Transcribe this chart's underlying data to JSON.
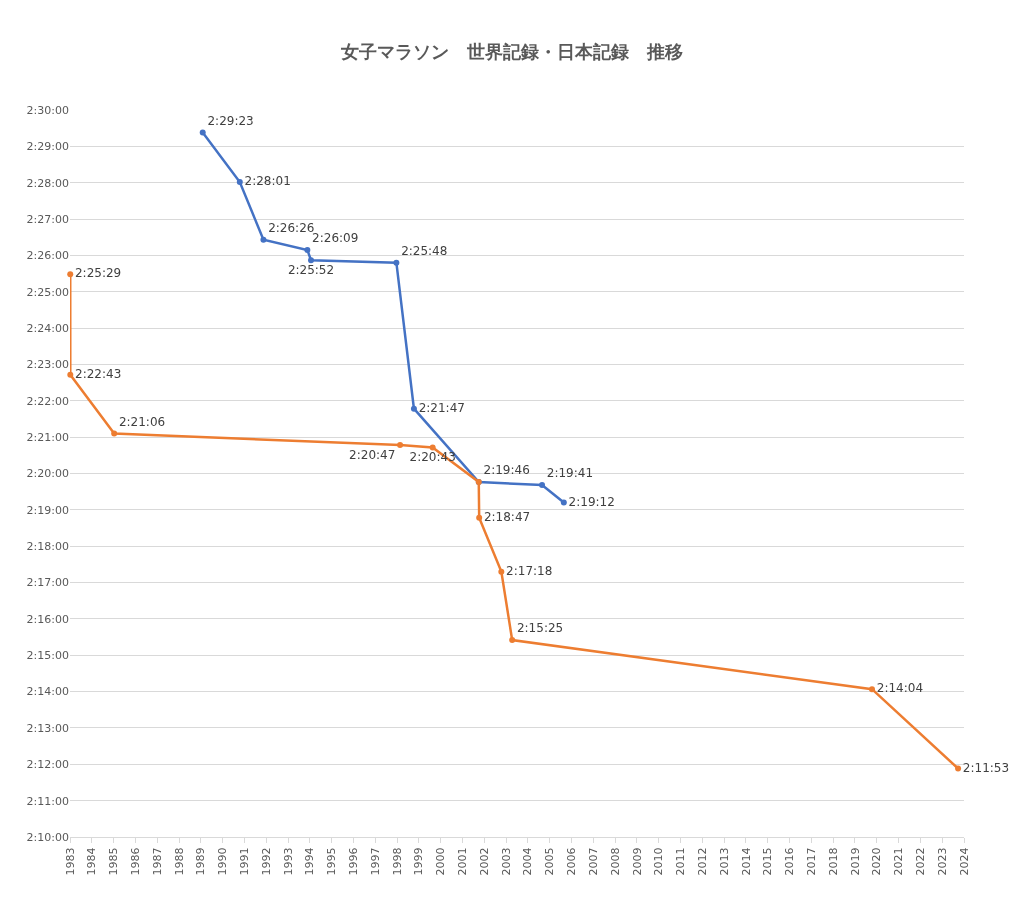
{
  "chart_data": {
    "type": "line",
    "title": "女子マラソン　世界記録・日本記録　推移",
    "series": [
      {
        "color": "#4472c4",
        "x": [
          "1989-02-01",
          "1990-10-15",
          "1991-11-15",
          "1993-11-20",
          "1994-01-20",
          "1997-12-20",
          "1998-10-10",
          "2001-09-30",
          "2004-08-25",
          "2005-08-25"
        ],
        "values": [
          8963,
          8881,
          8786,
          8769,
          8752,
          8748,
          8507,
          8386,
          8381,
          8352
        ],
        "value_labels": [
          "2:29:23",
          "2:28:01",
          "2:26:26",
          "2:26:09",
          "2:25:52",
          "2:25:48",
          "2:21:47",
          "2:19:46",
          "2:19:41",
          "2:19:12"
        ]
      },
      {
        "color": "#ed7d31",
        "x": [
          "1983-01-05",
          "1983-01-06",
          "1985-01-10",
          "1998-02-20",
          "1999-08-20",
          "2001-09-30",
          "2001-10-07",
          "2002-10-13",
          "2003-04-13",
          "2019-10-13",
          "2023-09-24"
        ],
        "values": [
          8729,
          8563,
          8466,
          8447,
          8443,
          8386,
          8327,
          8238,
          8125,
          8044,
          7913
        ],
        "value_labels": [
          "2:25:29",
          "2:22:43",
          "2:21:06",
          "2:20:47",
          "2:20:43",
          null,
          "2:18:47",
          "2:17:18",
          "2:15:25",
          "2:14:04",
          "2:11:53"
        ]
      }
    ],
    "xlim": [
      "1983-01-01",
      "2024-01-01"
    ],
    "xticks": [
      "1983",
      "1984",
      "1985",
      "1986",
      "1987",
      "1988",
      "1989",
      "1990",
      "1991",
      "1992",
      "1993",
      "1994",
      "1995",
      "1996",
      "1997",
      "1998",
      "1999",
      "2000",
      "2001",
      "2002",
      "2003",
      "2004",
      "2005",
      "2006",
      "2007",
      "2008",
      "2009",
      "2010",
      "2011",
      "2012",
      "2013",
      "2014",
      "2015",
      "2016",
      "2017",
      "2018",
      "2019",
      "2020",
      "2021",
      "2022",
      "2023",
      "2024"
    ],
    "ylim": [
      7800,
      9000
    ],
    "yticks": [
      {
        "value": 7800,
        "label": "2:10:00"
      },
      {
        "value": 7860,
        "label": "2:11:00"
      },
      {
        "value": 7920,
        "label": "2:12:00"
      },
      {
        "value": 7980,
        "label": "2:13:00"
      },
      {
        "value": 8040,
        "label": "2:14:00"
      },
      {
        "value": 8100,
        "label": "2:15:00"
      },
      {
        "value": 8160,
        "label": "2:16:00"
      },
      {
        "value": 8220,
        "label": "2:17:00"
      },
      {
        "value": 8280,
        "label": "2:18:00"
      },
      {
        "value": 8340,
        "label": "2:19:00"
      },
      {
        "value": 8400,
        "label": "2:20:00"
      },
      {
        "value": 8460,
        "label": "2:21:00"
      },
      {
        "value": 8520,
        "label": "2:22:00"
      },
      {
        "value": 8580,
        "label": "2:23:00"
      },
      {
        "value": 8640,
        "label": "2:24:00"
      },
      {
        "value": 8700,
        "label": "2:25:00"
      },
      {
        "value": 8760,
        "label": "2:26:00"
      },
      {
        "value": 8820,
        "label": "2:27:00"
      },
      {
        "value": 8880,
        "label": "2:28:00"
      },
      {
        "value": 8940,
        "label": "2:29:00"
      },
      {
        "value": 9000,
        "label": "2:30:00"
      }
    ],
    "grid": "y",
    "marker": "circle",
    "line_style": "solid"
  }
}
